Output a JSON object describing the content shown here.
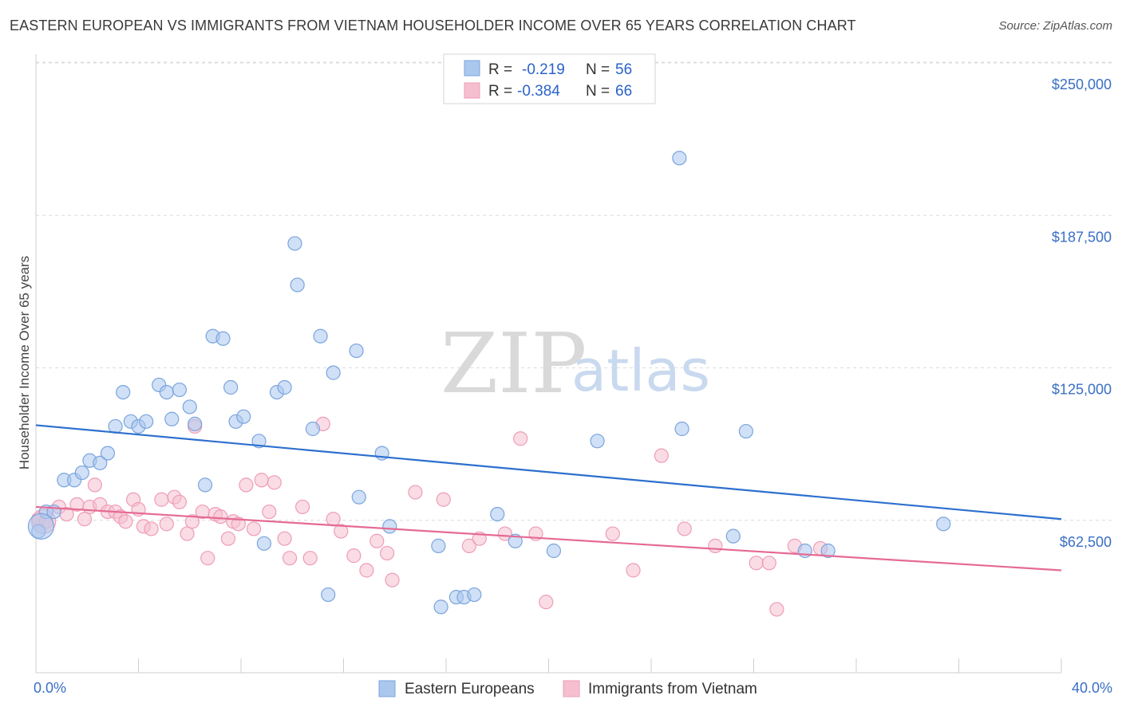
{
  "title": "EASTERN EUROPEAN VS IMMIGRANTS FROM VIETNAM HOUSEHOLDER INCOME OVER 65 YEARS CORRELATION CHART",
  "source": "Source: ZipAtlas.com",
  "watermark": {
    "zip": "ZIP",
    "atlas": "atlas"
  },
  "legend_top": [
    {
      "r_label": "R =",
      "r_value": "-0.219",
      "n_label": "N =",
      "n_value": "56"
    },
    {
      "r_label": "R =",
      "r_value": "-0.384",
      "n_label": "N =",
      "n_value": "66"
    }
  ],
  "colors": {
    "blue_fill": "#aac7ee",
    "blue_stroke": "#7aa5dd",
    "blue_line": "#2d6fce",
    "pink_fill": "#f6bfd0",
    "pink_stroke": "#ee9db7",
    "pink_line": "#e56a94",
    "grid": "#dcdcdc",
    "axis_label": "#3a6fc4"
  },
  "chart_data": {
    "type": "scatter",
    "ylabel": "Householder Income Over 65 years",
    "xlabel": "",
    "x_tick_labels": [
      "0.0%",
      "40.0%"
    ],
    "y_tick_labels": [
      "$62,500",
      "$125,000",
      "$187,500",
      "$250,000"
    ],
    "y_ticks": [
      62500,
      125000,
      187500,
      250000
    ],
    "xlim": [
      0,
      40
    ],
    "ylim": [
      0,
      262000
    ],
    "grid": true,
    "legend_placement": "bottom-center",
    "series": [
      {
        "name": "Eastern Europeans",
        "points": [
          [
            0.1,
            58000
          ],
          [
            0.4,
            66000
          ],
          [
            0.7,
            66000
          ],
          [
            1.1,
            79000
          ],
          [
            1.5,
            79000
          ],
          [
            1.8,
            82000
          ],
          [
            2.1,
            87000
          ],
          [
            2.5,
            86000
          ],
          [
            2.8,
            90000
          ],
          [
            3.1,
            101000
          ],
          [
            3.4,
            115000
          ],
          [
            3.7,
            103000
          ],
          [
            4.0,
            101000
          ],
          [
            4.3,
            103000
          ],
          [
            4.8,
            118000
          ],
          [
            5.1,
            115000
          ],
          [
            5.3,
            104000
          ],
          [
            5.6,
            116000
          ],
          [
            6.0,
            109000
          ],
          [
            6.2,
            102000
          ],
          [
            6.6,
            77000
          ],
          [
            6.9,
            138000
          ],
          [
            7.3,
            137000
          ],
          [
            7.6,
            117000
          ],
          [
            7.8,
            103000
          ],
          [
            8.1,
            105000
          ],
          [
            8.7,
            95000
          ],
          [
            8.9,
            53000
          ],
          [
            9.4,
            115000
          ],
          [
            9.7,
            117000
          ],
          [
            10.1,
            176000
          ],
          [
            10.2,
            159000
          ],
          [
            10.8,
            100000
          ],
          [
            11.1,
            138000
          ],
          [
            11.4,
            32000
          ],
          [
            11.6,
            123000
          ],
          [
            12.5,
            132000
          ],
          [
            12.6,
            72000
          ],
          [
            13.5,
            90000
          ],
          [
            13.8,
            60000
          ],
          [
            15.7,
            52000
          ],
          [
            15.8,
            27000
          ],
          [
            16.4,
            31000
          ],
          [
            16.7,
            31000
          ],
          [
            17.1,
            32000
          ],
          [
            18.0,
            65000
          ],
          [
            18.7,
            54000
          ],
          [
            20.2,
            50000
          ],
          [
            21.9,
            95000
          ],
          [
            25.1,
            211000
          ],
          [
            25.2,
            100000
          ],
          [
            27.2,
            56000
          ],
          [
            27.7,
            99000
          ],
          [
            30.0,
            50000
          ],
          [
            30.9,
            50000
          ],
          [
            35.4,
            61000
          ]
        ]
      },
      {
        "name": "Immigrants from Vietnam",
        "points": [
          [
            0.1,
            63000
          ],
          [
            0.4,
            62000
          ],
          [
            0.9,
            68000
          ],
          [
            1.2,
            65000
          ],
          [
            1.6,
            69000
          ],
          [
            1.9,
            63000
          ],
          [
            2.1,
            68000
          ],
          [
            2.3,
            77000
          ],
          [
            2.5,
            69000
          ],
          [
            2.8,
            66000
          ],
          [
            3.1,
            66000
          ],
          [
            3.3,
            64000
          ],
          [
            3.5,
            62000
          ],
          [
            3.8,
            71000
          ],
          [
            4.0,
            67000
          ],
          [
            4.2,
            60000
          ],
          [
            4.5,
            59000
          ],
          [
            4.9,
            71000
          ],
          [
            5.1,
            61000
          ],
          [
            5.4,
            72000
          ],
          [
            5.6,
            70000
          ],
          [
            5.9,
            57000
          ],
          [
            6.1,
            62000
          ],
          [
            6.2,
            101000
          ],
          [
            6.5,
            66000
          ],
          [
            6.7,
            47000
          ],
          [
            7.0,
            65000
          ],
          [
            7.2,
            64000
          ],
          [
            7.5,
            55000
          ],
          [
            7.7,
            62000
          ],
          [
            7.9,
            61000
          ],
          [
            8.2,
            77000
          ],
          [
            8.5,
            59000
          ],
          [
            8.8,
            79000
          ],
          [
            9.1,
            66000
          ],
          [
            9.3,
            78000
          ],
          [
            9.7,
            55000
          ],
          [
            9.9,
            47000
          ],
          [
            10.4,
            68000
          ],
          [
            10.7,
            47000
          ],
          [
            11.2,
            102000
          ],
          [
            11.6,
            63000
          ],
          [
            11.9,
            58000
          ],
          [
            12.4,
            48000
          ],
          [
            12.9,
            42000
          ],
          [
            13.3,
            54000
          ],
          [
            13.7,
            49000
          ],
          [
            13.9,
            38000
          ],
          [
            14.8,
            74000
          ],
          [
            15.9,
            71000
          ],
          [
            16.9,
            52000
          ],
          [
            17.3,
            55000
          ],
          [
            18.3,
            57000
          ],
          [
            18.9,
            96000
          ],
          [
            19.5,
            57000
          ],
          [
            19.9,
            29000
          ],
          [
            22.5,
            57000
          ],
          [
            23.3,
            42000
          ],
          [
            24.4,
            89000
          ],
          [
            25.3,
            59000
          ],
          [
            26.5,
            52000
          ],
          [
            28.1,
            45000
          ],
          [
            28.9,
            26000
          ],
          [
            29.6,
            52000
          ],
          [
            30.6,
            51000
          ],
          [
            28.6,
            45000
          ]
        ]
      }
    ],
    "trendlines": [
      {
        "series": "Eastern Europeans",
        "x": [
          0,
          40
        ],
        "y": [
          101500,
          63000
        ]
      },
      {
        "series": "Immigrants from Vietnam",
        "x": [
          0,
          40
        ],
        "y": [
          68000,
          42000
        ]
      }
    ]
  }
}
